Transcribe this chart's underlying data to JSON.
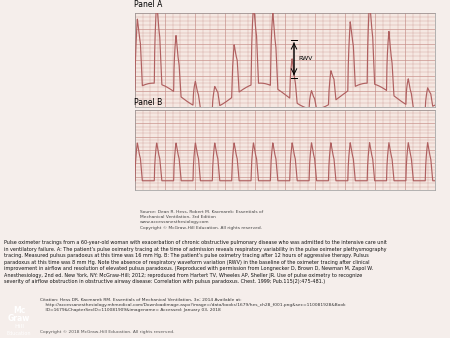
{
  "fig_bg": "#f5eeeb",
  "panel_bg": "#f5e8e2",
  "grid_color": "#c8908a",
  "trace_color": "#b06060",
  "panel_a_label": "Panel A",
  "panel_b_label": "Panel B",
  "rwv_label": "RWV",
  "source_text": "Source: Dean R. Hess, Robert M. Kacmarek: Essentials of\nMechanical Ventilation, 3rd Edition\nwww.accessanesthesiology.com\nCopyright © McGraw-Hill Education. All rights reserved.",
  "caption_line1": "Pulse oximeter tracings from a 60-year-old woman with exacerbation of chronic obstructive pulmonary disease who was admitted to the intensive care unit",
  "caption_line2": "in ventilatory failure. A: The patient’s pulse oximetry tracing at the time of admission reveals respiratory variability in the pulse oximeter plethysmography",
  "caption_line3": "tracing. Measured pulsus paradoxus at this time was 16 mm Hg. B: The patient’s pulse oximetry tracing after 12 hours of aggressive therapy. Pulsus",
  "caption_line4": "paradoxus at this time was 8 mm Hg. Note the absence of respiratory waveform variation (RWV) in the baseline of the oximeter tracing after clinical",
  "caption_line5": "improvement in airflow and resolution of elevated pulsus paradoxus. (Reproduced with permission from Longnecker D, Brown D, Newman M, Zapol W.",
  "caption_line6": "Anesthesiology, 2nd ed. New York, NY: McGraw-Hill; 2012; reproduced from Hartert TV, Wheeles AP, Sheller JR. Use of pulse oximetry to recognize",
  "caption_line7": "severity of airflow obstruction in obstructive airway disease: Correlation with pulsus paradoxus. Chest. 1999; Pub.115(2):475-481.)",
  "citation_line1": "Citation: Hess DR, Kacmarek RM. Essentials of Mechanical Ventilation, 3e; 2014 Available at:",
  "citation_line2": "    http://accessanesthesiology.mhmedical.com/Downloadimage.aspx?image=/data/books/1679/hes_ch28_f001.png&sec=110081928&Book",
  "citation_line3": "    ID=1679&ChapterSecID=110081909&imagename= Accessed: January 03, 2018",
  "copyright_text": "Copyright © 2018 McGraw-Hill Education. All rights reserved.",
  "logo_color": "#cc2222",
  "logo_lines": [
    "Mc",
    "Graw",
    "Hill",
    "Education"
  ]
}
